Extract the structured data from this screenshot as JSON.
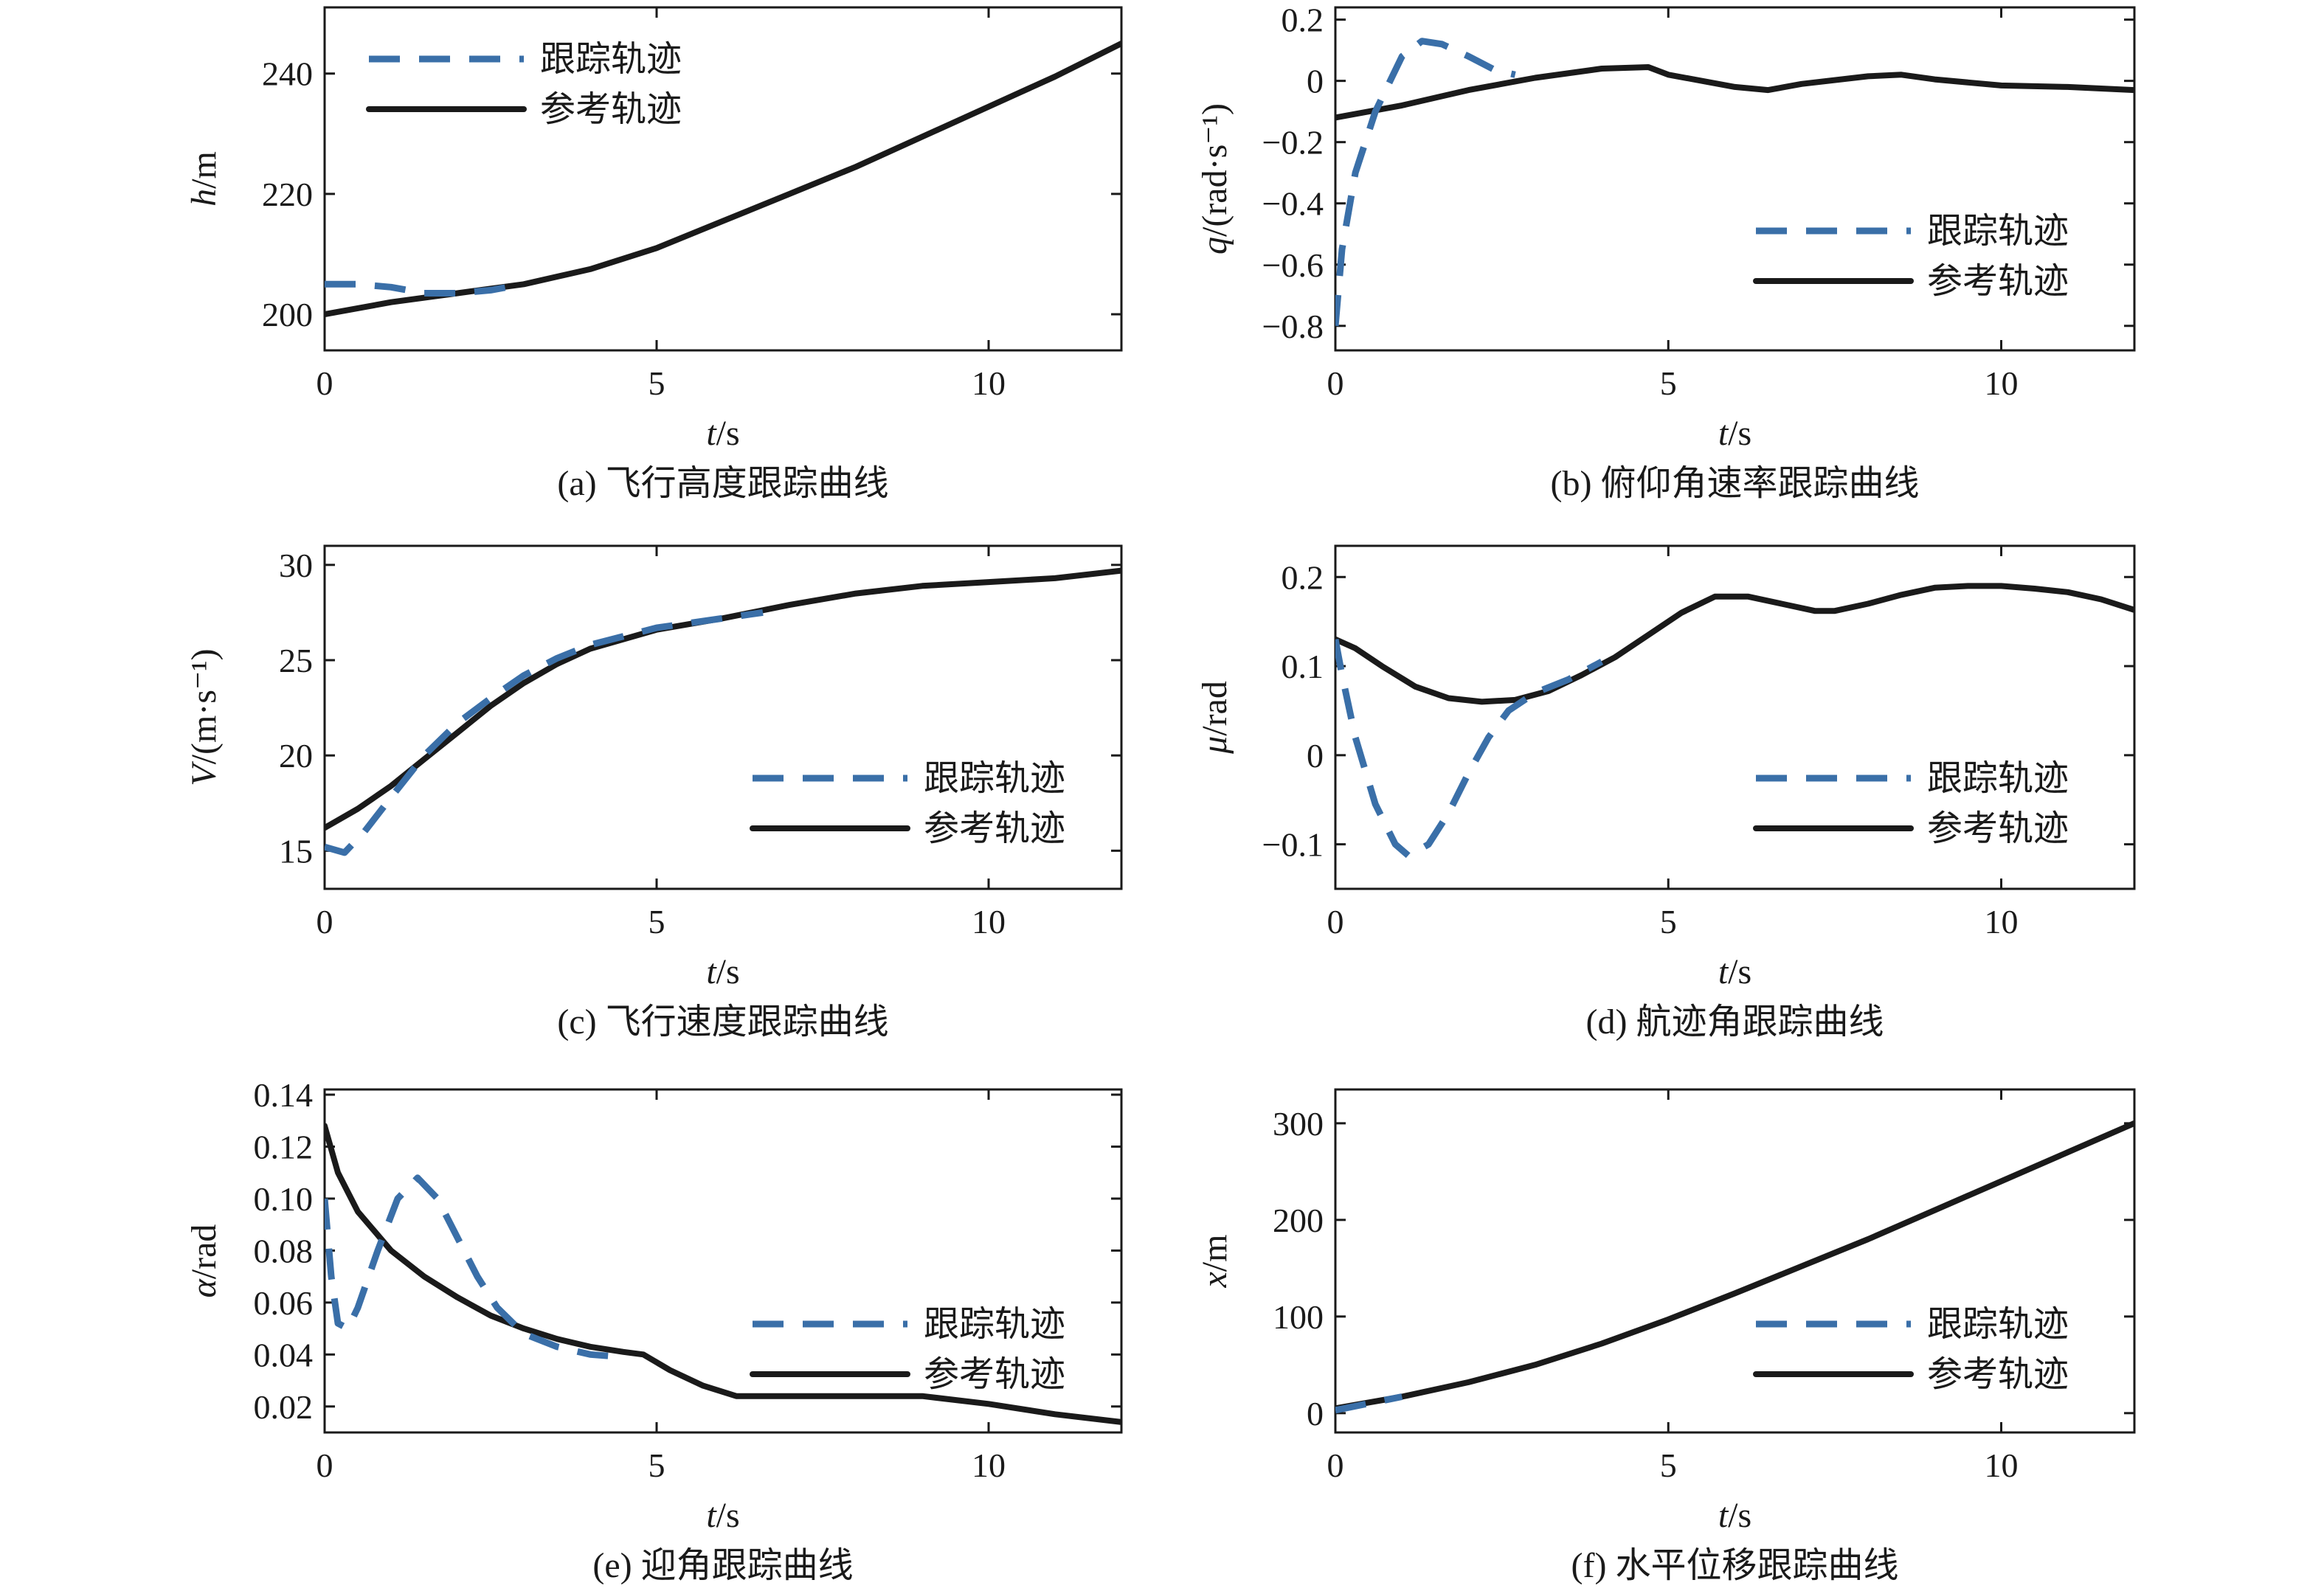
{
  "colors": {
    "tracking": "#3a6fa8",
    "reference": "#1a1a1a",
    "frame": "#1a1a1a"
  },
  "legend": {
    "tracking_label": "跟踪轨迹",
    "reference_label": "参考轨迹"
  },
  "chart_data": [
    {
      "id": "a",
      "type": "line",
      "caption": "(a) 飞行高度跟踪曲线",
      "xlabel": "t/s",
      "ylabel": "h/m",
      "xlim": [
        0,
        12
      ],
      "ylim": [
        194,
        251
      ],
      "xticks": [
        "0",
        "5",
        "10"
      ],
      "xtick_values": [
        0,
        5,
        10
      ],
      "yticks": [
        "200",
        "220",
        "240"
      ],
      "ytick_values": [
        200,
        220,
        240
      ],
      "legend_position": "top-left",
      "series": [
        {
          "name": "参考轨迹",
          "role": "reference",
          "x": [
            0,
            1,
            2,
            3,
            4,
            5,
            6,
            7,
            8,
            9,
            10,
            11,
            12
          ],
          "y": [
            200,
            202,
            203.5,
            205,
            207.5,
            211,
            215.5,
            220,
            224.5,
            229.5,
            234.5,
            239.5,
            245
          ]
        },
        {
          "name": "跟踪轨迹",
          "role": "tracking",
          "x": [
            0,
            0.5,
            1,
            1.5,
            2,
            2.5,
            3
          ],
          "y": [
            205,
            205,
            204.5,
            203.5,
            203.5,
            204,
            205
          ]
        }
      ]
    },
    {
      "id": "b",
      "type": "line",
      "caption": "(b) 俯仰角速率跟踪曲线",
      "xlabel": "t/s",
      "ylabel": "q/(rad·s⁻¹)",
      "xlim": [
        0,
        12
      ],
      "ylim": [
        -0.88,
        0.24
      ],
      "xticks": [
        "0",
        "5",
        "10"
      ],
      "xtick_values": [
        0,
        5,
        10
      ],
      "yticks": [
        "0.2",
        "0",
        "−0.2",
        "−0.4",
        "−0.6",
        "−0.8"
      ],
      "ytick_values": [
        0.2,
        0,
        -0.2,
        -0.4,
        -0.6,
        -0.8
      ],
      "legend_position": "center-right",
      "series": [
        {
          "name": "参考轨迹",
          "role": "reference",
          "x": [
            0,
            1,
            2,
            3,
            4,
            4.7,
            5,
            6,
            6.5,
            7,
            8,
            8.5,
            9,
            10,
            11,
            12
          ],
          "y": [
            -0.12,
            -0.08,
            -0.03,
            0.01,
            0.04,
            0.045,
            0.02,
            -0.02,
            -0.03,
            -0.01,
            0.015,
            0.02,
            0.005,
            -0.015,
            -0.02,
            -0.03
          ]
        },
        {
          "name": "跟踪轨迹",
          "role": "tracking",
          "x": [
            0,
            0.1,
            0.3,
            0.6,
            1,
            1.3,
            1.6,
            2,
            2.4,
            2.7
          ],
          "y": [
            -0.8,
            -0.55,
            -0.3,
            -0.1,
            0.08,
            0.13,
            0.12,
            0.08,
            0.035,
            0.02
          ]
        }
      ]
    },
    {
      "id": "c",
      "type": "line",
      "caption": "(c) 飞行速度跟踪曲线",
      "xlabel": "t/s",
      "ylabel": "V/(m·s⁻¹)",
      "xlim": [
        0,
        12
      ],
      "ylim": [
        13,
        31
      ],
      "xticks": [
        "0",
        "5",
        "10"
      ],
      "xtick_values": [
        0,
        5,
        10
      ],
      "yticks": [
        "15",
        "20",
        "25",
        "30"
      ],
      "ytick_values": [
        15,
        20,
        25,
        30
      ],
      "legend_position": "bottom-right",
      "series": [
        {
          "name": "参考轨迹",
          "role": "reference",
          "x": [
            0,
            0.5,
            1,
            1.5,
            2,
            2.5,
            3,
            3.5,
            4,
            5,
            6,
            7,
            8,
            9,
            10,
            11,
            12
          ],
          "y": [
            16.2,
            17.2,
            18.4,
            19.8,
            21.2,
            22.6,
            23.8,
            24.8,
            25.6,
            26.6,
            27.2,
            27.9,
            28.5,
            28.9,
            29.1,
            29.3,
            29.7
          ]
        },
        {
          "name": "跟踪轨迹",
          "role": "tracking",
          "x": [
            0,
            0.3,
            0.6,
            1,
            1.5,
            2,
            2.5,
            3,
            3.5,
            4,
            5,
            6,
            6.6
          ],
          "y": [
            15.2,
            14.9,
            16,
            17.8,
            20,
            21.7,
            23,
            24.2,
            25.1,
            25.8,
            26.7,
            27.2,
            27.5
          ]
        }
      ]
    },
    {
      "id": "d",
      "type": "line",
      "caption": "(d) 航迹角跟踪曲线",
      "xlabel": "t/s",
      "ylabel": "μ/rad",
      "xlim": [
        0,
        12
      ],
      "ylim": [
        -0.15,
        0.235
      ],
      "xticks": [
        "0",
        "5",
        "10"
      ],
      "xtick_values": [
        0,
        5,
        10
      ],
      "yticks": [
        "0.2",
        "0.1",
        "0",
        "−0.1"
      ],
      "ytick_values": [
        0.2,
        0.1,
        0,
        -0.1
      ],
      "legend_position": "bottom-right",
      "series": [
        {
          "name": "参考轨迹",
          "role": "reference",
          "x": [
            0,
            0.3,
            0.7,
            1.2,
            1.7,
            2.2,
            2.7,
            3.2,
            3.7,
            4.2,
            4.7,
            5.2,
            5.7,
            6.2,
            6.7,
            7.2,
            7.5,
            8,
            8.5,
            9,
            9.5,
            10,
            10.5,
            11,
            11.5,
            12
          ],
          "y": [
            0.13,
            0.12,
            0.1,
            0.077,
            0.064,
            0.06,
            0.062,
            0.072,
            0.09,
            0.11,
            0.135,
            0.16,
            0.178,
            0.178,
            0.17,
            0.162,
            0.162,
            0.17,
            0.18,
            0.188,
            0.19,
            0.19,
            0.187,
            0.183,
            0.175,
            0.163
          ]
        },
        {
          "name": "跟踪轨迹",
          "role": "tracking",
          "x": [
            0,
            0.1,
            0.3,
            0.6,
            0.9,
            1.1,
            1.4,
            1.7,
            2,
            2.3,
            2.6,
            3,
            3.5,
            4
          ],
          "y": [
            0.13,
            0.09,
            0.02,
            -0.055,
            -0.1,
            -0.113,
            -0.1,
            -0.065,
            -0.02,
            0.02,
            0.05,
            0.07,
            0.085,
            0.105
          ]
        }
      ]
    },
    {
      "id": "e",
      "type": "line",
      "caption": "(e) 迎角跟踪曲线",
      "xlabel": "t/s",
      "ylabel": "α/rad",
      "xlim": [
        0,
        12
      ],
      "ylim": [
        0.01,
        0.142
      ],
      "xticks": [
        "0",
        "5",
        "10"
      ],
      "xtick_values": [
        0,
        5,
        10
      ],
      "yticks": [
        "0.14",
        "0.12",
        "0.10",
        "0.08",
        "0.06",
        "0.04",
        "0.02"
      ],
      "ytick_values": [
        0.14,
        0.12,
        0.1,
        0.08,
        0.06,
        0.04,
        0.02
      ],
      "legend_position": "bottom-right",
      "series": [
        {
          "name": "参考轨迹",
          "role": "reference",
          "x": [
            0,
            0.2,
            0.5,
            1,
            1.5,
            2,
            2.5,
            3,
            3.5,
            4,
            4.5,
            4.8,
            5.2,
            5.7,
            6.2,
            6.5,
            7,
            8,
            9,
            10,
            11,
            12
          ],
          "y": [
            0.128,
            0.11,
            0.095,
            0.08,
            0.07,
            0.062,
            0.055,
            0.05,
            0.046,
            0.043,
            0.041,
            0.04,
            0.034,
            0.028,
            0.024,
            0.024,
            0.024,
            0.024,
            0.024,
            0.021,
            0.017,
            0.014
          ]
        },
        {
          "name": "跟踪轨迹",
          "role": "tracking",
          "x": [
            0,
            0.1,
            0.2,
            0.35,
            0.5,
            0.8,
            1.1,
            1.4,
            1.7,
            2,
            2.3,
            2.6,
            3,
            3.5,
            4,
            4.5
          ],
          "y": [
            0.1,
            0.07,
            0.052,
            0.05,
            0.058,
            0.08,
            0.1,
            0.108,
            0.1,
            0.085,
            0.07,
            0.058,
            0.048,
            0.043,
            0.04,
            0.039
          ]
        }
      ]
    },
    {
      "id": "f",
      "type": "line",
      "caption": "(f) 水平位移跟踪曲线",
      "xlabel": "t/s",
      "ylabel": "x/m",
      "xlim": [
        0,
        12
      ],
      "ylim": [
        -20,
        335
      ],
      "xticks": [
        "0",
        "5",
        "10"
      ],
      "xtick_values": [
        0,
        5,
        10
      ],
      "yticks": [
        "300",
        "200",
        "100",
        "0"
      ],
      "ytick_values": [
        300,
        200,
        100,
        0
      ],
      "legend_position": "bottom-right",
      "series": [
        {
          "name": "参考轨迹",
          "role": "reference",
          "x": [
            0,
            1,
            2,
            3,
            4,
            5,
            6,
            7,
            8,
            9,
            10,
            11,
            12
          ],
          "y": [
            5,
            17,
            32,
            50,
            72,
            97,
            124,
            152,
            180,
            210,
            240,
            270,
            300
          ]
        },
        {
          "name": "跟踪轨迹",
          "role": "tracking",
          "x": [
            0,
            0.5,
            1
          ],
          "y": [
            3,
            10,
            17
          ]
        }
      ]
    }
  ]
}
